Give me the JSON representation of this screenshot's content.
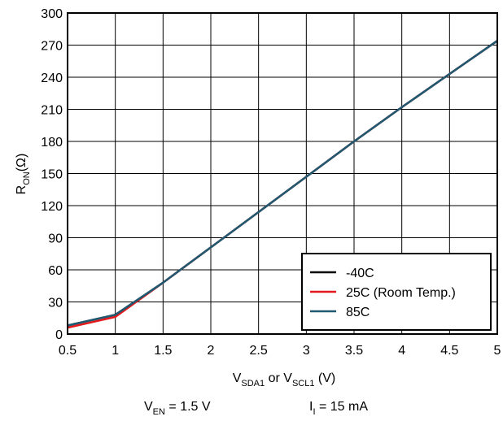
{
  "chart_data": {
    "type": "line",
    "xlabel": {
      "base": "V",
      "sub1": "SDA1",
      "mid": " or V",
      "sub2": "SCL1",
      "unit": " (V)"
    },
    "ylabel": {
      "base": "R",
      "sub": "ON",
      "unit": "(Ω)"
    },
    "xlim": [
      0.5,
      5
    ],
    "ylim": [
      0,
      300
    ],
    "x_ticks": [
      "0.5",
      "1",
      "1.5",
      "2",
      "2.5",
      "3",
      "3.5",
      "4",
      "4.5",
      "5"
    ],
    "y_ticks": [
      "0",
      "30",
      "60",
      "90",
      "120",
      "150",
      "180",
      "210",
      "240",
      "270",
      "300"
    ],
    "grid": true,
    "legend_position": "bottom-right",
    "series": [
      {
        "name": "-40C",
        "color": "#000000",
        "x": [
          0.5,
          1,
          1.5,
          2,
          2.5,
          3,
          3.5,
          4,
          4.5,
          5
        ],
        "y": [
          8,
          18,
          48,
          81,
          114,
          147,
          180,
          212,
          243,
          274
        ]
      },
      {
        "name": "25C (Room Temp.)",
        "color": "#e31a1c",
        "x": [
          0.5,
          1,
          1.5,
          2,
          2.5,
          3,
          3.5,
          4,
          4.5,
          5
        ],
        "y": [
          6,
          16,
          48,
          81,
          114,
          147,
          180,
          212,
          243,
          274
        ]
      },
      {
        "name": "85C",
        "color": "#1f5a72",
        "x": [
          0.5,
          1,
          1.5,
          2,
          2.5,
          3,
          3.5,
          4,
          4.5,
          5
        ],
        "y": [
          8,
          18,
          48,
          81,
          114,
          147,
          180,
          212,
          243,
          274
        ]
      }
    ],
    "conditions": [
      {
        "base": "V",
        "sub": "EN",
        "rest": " = 1.5 V"
      },
      {
        "base": "I",
        "sub": "I",
        "rest": " = 15 mA"
      }
    ]
  }
}
